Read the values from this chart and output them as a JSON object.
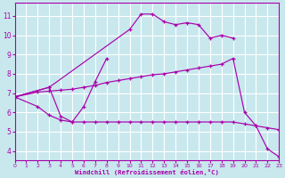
{
  "background_color": "#c8e8ee",
  "grid_color": "#b0d8de",
  "line_color": "#aa00aa",
  "xlabel": "Windchill (Refroidissement éolien,°C)",
  "xlim": [
    0,
    23
  ],
  "ylim": [
    3.5,
    11.7
  ],
  "yticks": [
    4,
    5,
    6,
    7,
    8,
    9,
    10,
    11
  ],
  "xticks": [
    0,
    1,
    2,
    3,
    4,
    5,
    6,
    7,
    8,
    9,
    10,
    11,
    12,
    13,
    14,
    15,
    16,
    17,
    18,
    19,
    20,
    21,
    22,
    23
  ],
  "s1_x": [
    0,
    3,
    10,
    11,
    12,
    13,
    14,
    15,
    16,
    17,
    18,
    19
  ],
  "s1_y": [
    6.8,
    7.3,
    10.3,
    11.1,
    11.1,
    10.7,
    10.55,
    10.65,
    10.55,
    9.85,
    10.0,
    9.85
  ],
  "s2_x": [
    0,
    3,
    4,
    5,
    6,
    7,
    8
  ],
  "s2_y": [
    6.8,
    7.3,
    5.8,
    5.5,
    6.3,
    7.6,
    8.8
  ],
  "s3_x": [
    0,
    2,
    3,
    4,
    5,
    6,
    7,
    8,
    9,
    10,
    11,
    12,
    13,
    14,
    15,
    16,
    17,
    18,
    19,
    20,
    21,
    22,
    23
  ],
  "s3_y": [
    6.8,
    7.05,
    7.1,
    7.15,
    7.2,
    7.3,
    7.4,
    7.55,
    7.65,
    7.75,
    7.85,
    7.95,
    8.0,
    8.1,
    8.2,
    8.3,
    8.4,
    8.5,
    8.8,
    6.0,
    5.3,
    4.1,
    3.7
  ],
  "s4_x": [
    0,
    2,
    3,
    4,
    5,
    6,
    7,
    8,
    9,
    10,
    11,
    12,
    13,
    14,
    15,
    16,
    17,
    18,
    19,
    20,
    21,
    22,
    23
  ],
  "s4_y": [
    6.8,
    6.3,
    5.85,
    5.6,
    5.5,
    5.5,
    5.5,
    5.5,
    5.5,
    5.5,
    5.5,
    5.5,
    5.5,
    5.5,
    5.5,
    5.5,
    5.5,
    5.5,
    5.5,
    5.4,
    5.3,
    5.2,
    5.1
  ]
}
